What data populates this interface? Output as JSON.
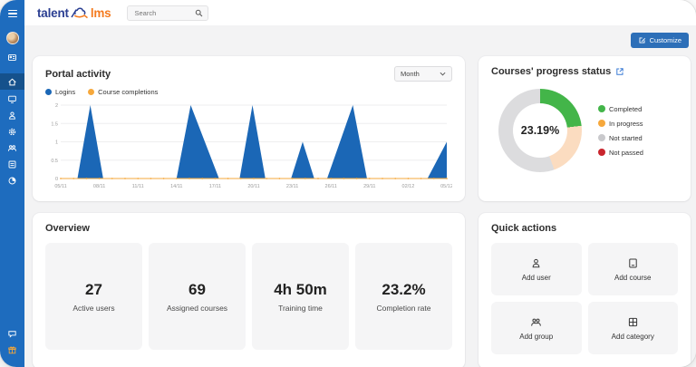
{
  "topbar": {
    "logo_talent": "talent",
    "logo_lms": "lms",
    "brand_navy": "#2b3f92",
    "brand_orange": "#f47b20",
    "search_placeholder": "Search"
  },
  "sidebar": {
    "bg_color": "#1e6cbe",
    "active_bg_color": "#15518c",
    "items": [
      {
        "name": "home",
        "active": true
      },
      {
        "name": "courses",
        "active": false
      },
      {
        "name": "users",
        "active": false
      },
      {
        "name": "settings",
        "active": false
      },
      {
        "name": "groups",
        "active": false
      },
      {
        "name": "reports",
        "active": false
      },
      {
        "name": "statistics",
        "active": false
      }
    ]
  },
  "header": {
    "customize_label": "Customize",
    "customize_color": "#2d6fb8"
  },
  "portal_activity": {
    "title": "Portal activity",
    "period_selected": "Month",
    "legend": [
      {
        "label": "Logins",
        "color": "#1b67b6"
      },
      {
        "label": "Course completions",
        "color": "#f6a83c"
      }
    ]
  },
  "chart_data": {
    "type": "area",
    "title": "Portal activity",
    "x_tick_labels": [
      "05/11",
      "08/11",
      "11/11",
      "14/11",
      "17/11",
      "20/11",
      "23/11",
      "26/11",
      "29/11",
      "02/12",
      "05/12"
    ],
    "x_tick_days": [
      0,
      3,
      6,
      9,
      12,
      15,
      18,
      21,
      24,
      27,
      30
    ],
    "x_range_days": [
      0,
      30
    ],
    "yticks": [
      0,
      0.5,
      1,
      1.5,
      2
    ],
    "ylim": [
      0,
      2
    ],
    "grid": true,
    "legend_position": "top-left",
    "series": [
      {
        "name": "Logins",
        "type": "area",
        "color": "#1b67b6",
        "points": [
          [
            0,
            0
          ],
          [
            1.3,
            0
          ],
          [
            2.3,
            2
          ],
          [
            3.3,
            0
          ],
          [
            9,
            0
          ],
          [
            10.1,
            2
          ],
          [
            12.3,
            0
          ],
          [
            13.9,
            0
          ],
          [
            14.9,
            2
          ],
          [
            15.9,
            0
          ],
          [
            17.9,
            0
          ],
          [
            18.8,
            1
          ],
          [
            19.7,
            0
          ],
          [
            20.7,
            0
          ],
          [
            22.7,
            2
          ],
          [
            23.8,
            0
          ],
          [
            28.5,
            0
          ],
          [
            30,
            1
          ]
        ]
      },
      {
        "name": "Course completions",
        "type": "line",
        "color": "#f6a83c",
        "points": [
          [
            0,
            0
          ],
          [
            30,
            0
          ]
        ]
      }
    ]
  },
  "progress_status": {
    "title": "Courses' progress status",
    "center_value": "23.19%",
    "segments": [
      {
        "label": "Completed",
        "value": 23.19,
        "color": "#43b549",
        "arc_color": "#43b549"
      },
      {
        "label": "In progress",
        "value": 21.31,
        "color": "#f6a83c",
        "arc_color": "#fbdcc0"
      },
      {
        "label": "Not started",
        "value": 55.5,
        "color": "#c9c9cc",
        "arc_color": "#dcdcde"
      },
      {
        "label": "Not passed",
        "value": 0,
        "color": "#c9252d",
        "arc_color": "#c9252d"
      }
    ]
  },
  "overview": {
    "title": "Overview",
    "stats": [
      {
        "value": "27",
        "label": "Active users"
      },
      {
        "value": "69",
        "label": "Assigned courses"
      },
      {
        "value": "4h 50m",
        "label": "Training time"
      },
      {
        "value": "23.2%",
        "label": "Completion rate"
      }
    ]
  },
  "quick_actions": {
    "title": "Quick actions",
    "actions": [
      {
        "label": "Add user",
        "icon": "user-add-icon"
      },
      {
        "label": "Add course",
        "icon": "course-add-icon"
      },
      {
        "label": "Add group",
        "icon": "group-add-icon"
      },
      {
        "label": "Add category",
        "icon": "category-add-icon"
      }
    ]
  },
  "icons": {
    "menu-icon": "hamburger",
    "search-icon": "magnifier",
    "customize-icon": "pencil-square",
    "period-chevron-icon": "chevron-down",
    "external-link-icon": "arrow-up-right-square",
    "home-icon": "house",
    "courses-icon": "display",
    "users-icon": "person",
    "settings-icon": "gear",
    "groups-icon": "people",
    "reports-icon": "list-box",
    "statistics-icon": "pie",
    "messages-icon": "chat-bubble",
    "gift-icon": "gift"
  }
}
